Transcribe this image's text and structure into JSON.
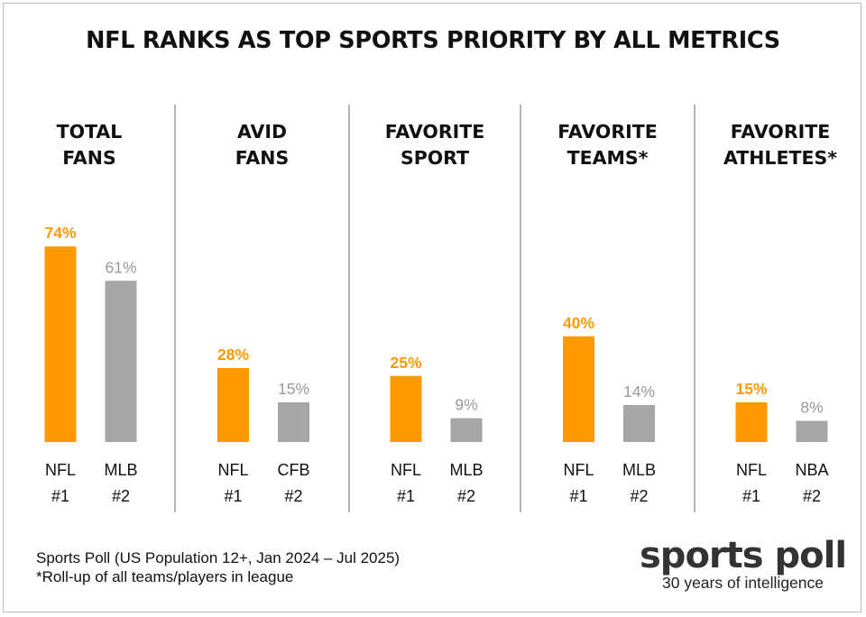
{
  "title": "NFL RANKS AS TOP SPORTS PRIORITY BY ALL METRICS",
  "footnotes": [
    "Sports Poll (US Population 12+, Jan 2024 – Jul 2025)",
    "*Roll-up of all teams/players in league"
  ],
  "logo": {
    "name": "sports poll",
    "tagline": "30 years of intelligence"
  },
  "colors": {
    "primary": "#FF9900",
    "secondary": "#A6A6A6",
    "divider": "#8C8C8C"
  },
  "chart_data": [
    {
      "type": "bar",
      "title": [
        "TOTAL",
        "FANS"
      ],
      "bars": [
        {
          "label": "NFL",
          "rank": "#1",
          "value": 74,
          "value_label": "74%",
          "highlight": true
        },
        {
          "label": "MLB",
          "rank": "#2",
          "value": 61,
          "value_label": "61%",
          "highlight": false
        }
      ]
    },
    {
      "type": "bar",
      "title": [
        "AVID",
        "FANS"
      ],
      "bars": [
        {
          "label": "NFL",
          "rank": "#1",
          "value": 28,
          "value_label": "28%",
          "highlight": true
        },
        {
          "label": "CFB",
          "rank": "#2",
          "value": 15,
          "value_label": "15%",
          "highlight": false
        }
      ]
    },
    {
      "type": "bar",
      "title": [
        "FAVORITE",
        "SPORT"
      ],
      "bars": [
        {
          "label": "NFL",
          "rank": "#1",
          "value": 25,
          "value_label": "25%",
          "highlight": true
        },
        {
          "label": "MLB",
          "rank": "#2",
          "value": 9,
          "value_label": "9%",
          "highlight": false
        }
      ]
    },
    {
      "type": "bar",
      "title": [
        "FAVORITE",
        "TEAMS*"
      ],
      "bars": [
        {
          "label": "NFL",
          "rank": "#1",
          "value": 40,
          "value_label": "40%",
          "highlight": true
        },
        {
          "label": "MLB",
          "rank": "#2",
          "value": 14,
          "value_label": "14%",
          "highlight": false
        }
      ]
    },
    {
      "type": "bar",
      "title": [
        "FAVORITE",
        "ATHLETES*"
      ],
      "bars": [
        {
          "label": "NFL",
          "rank": "#1",
          "value": 15,
          "value_label": "15%",
          "highlight": true
        },
        {
          "label": "NBA",
          "rank": "#2",
          "value": 8,
          "value_label": "8%",
          "highlight": false
        }
      ]
    }
  ]
}
